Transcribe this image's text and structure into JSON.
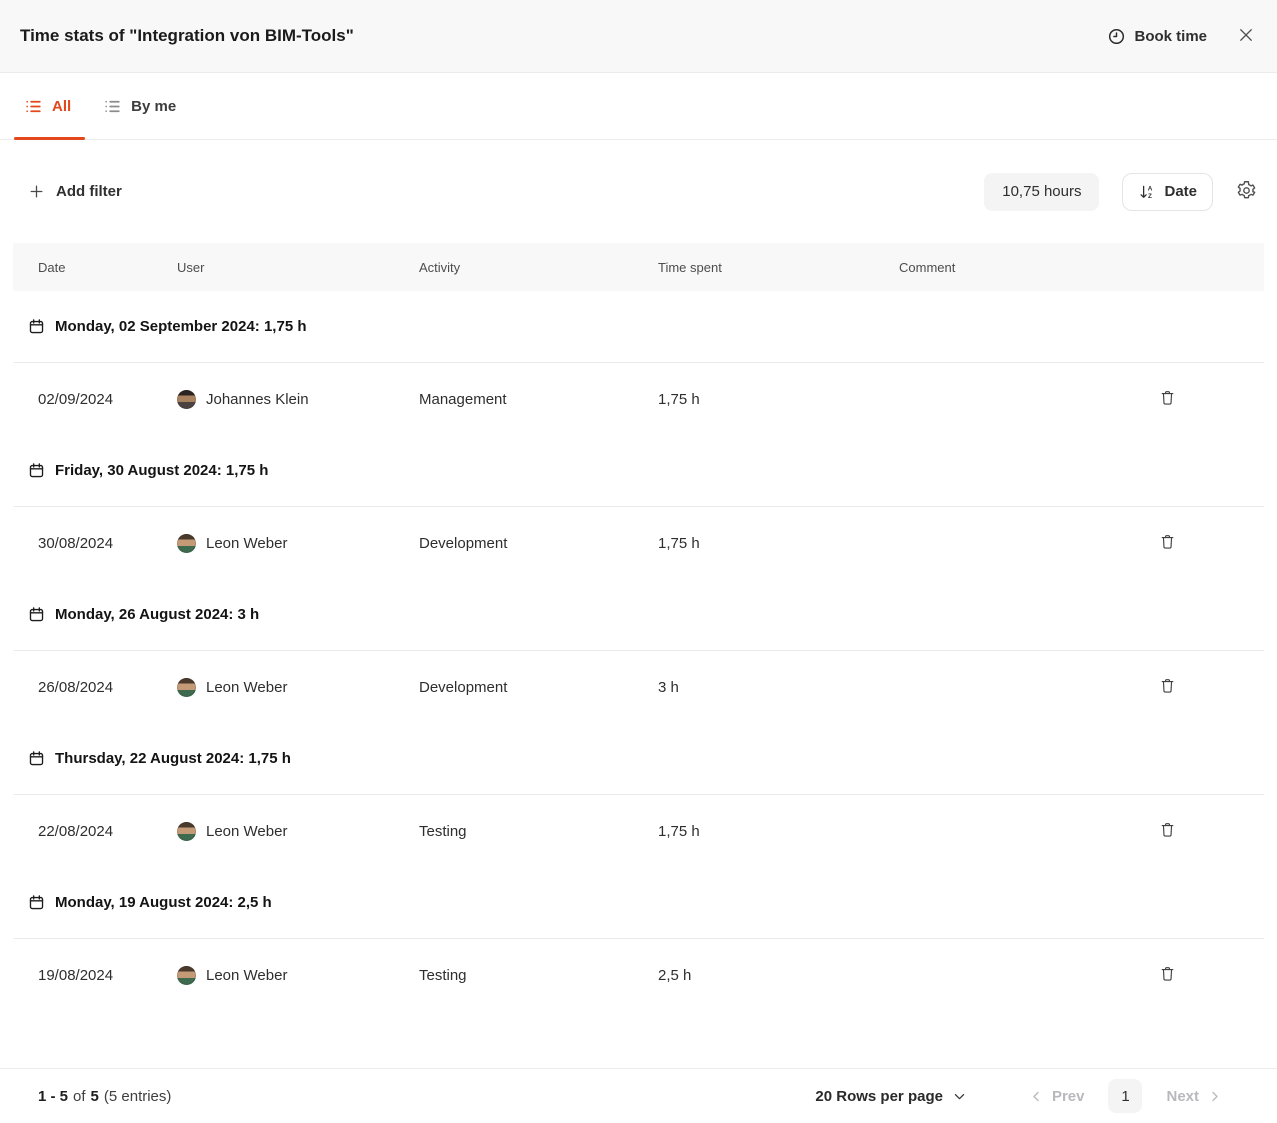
{
  "header": {
    "title": "Time stats of \"Integration von BIM-Tools\"",
    "book_time_label": "Book time"
  },
  "tabs": [
    {
      "label": "All",
      "active": true
    },
    {
      "label": "By me",
      "active": false
    }
  ],
  "toolbar": {
    "add_filter_label": "Add filter",
    "total_hours": "10,75 hours",
    "sort_label": "Date"
  },
  "table": {
    "columns": [
      "Date",
      "User",
      "Activity",
      "Time spent",
      "Comment"
    ],
    "groups": [
      {
        "header": "Monday, 02 September 2024: 1,75 h",
        "rows": [
          {
            "date": "02/09/2024",
            "user": "Johannes Klein",
            "activity": "Management",
            "time_spent": "1,75 h",
            "comment": "",
            "avatar_colors": [
              "#2b2522",
              "#a8825f",
              "#4a4342"
            ]
          }
        ]
      },
      {
        "header": "Friday, 30 August 2024: 1,75 h",
        "rows": [
          {
            "date": "30/08/2024",
            "user": "Leon Weber",
            "activity": "Development",
            "time_spent": "1,75 h",
            "comment": "",
            "avatar_colors": [
              "#4a3a2c",
              "#c49a77",
              "#3e6b4f"
            ]
          }
        ]
      },
      {
        "header": "Monday, 26 August 2024: 3 h",
        "rows": [
          {
            "date": "26/08/2024",
            "user": "Leon Weber",
            "activity": "Development",
            "time_spent": "3 h",
            "comment": "",
            "avatar_colors": [
              "#4a3a2c",
              "#c49a77",
              "#3e6b4f"
            ]
          }
        ]
      },
      {
        "header": "Thursday, 22 August 2024: 1,75 h",
        "rows": [
          {
            "date": "22/08/2024",
            "user": "Leon Weber",
            "activity": "Testing",
            "time_spent": "1,75 h",
            "comment": "",
            "avatar_colors": [
              "#4a3a2c",
              "#c49a77",
              "#3e6b4f"
            ]
          }
        ]
      },
      {
        "header": "Monday, 19 August 2024: 2,5 h",
        "rows": [
          {
            "date": "19/08/2024",
            "user": "Leon Weber",
            "activity": "Testing",
            "time_spent": "2,5 h",
            "comment": "",
            "avatar_colors": [
              "#4a3a2c",
              "#c49a77",
              "#3e6b4f"
            ]
          }
        ]
      }
    ]
  },
  "pagination": {
    "summary_range": "1 - 5",
    "summary_of": "of",
    "summary_total": "5",
    "summary_entries": "(5 entries)",
    "rows_per_page": "20 Rows per page",
    "prev_label": "Prev",
    "page": "1",
    "next_label": "Next"
  },
  "colors": {
    "accent": "#e2481c",
    "header_bg": "#f8f8f8",
    "table_header_bg": "#f8f8f8",
    "pill_bg": "#f4f4f5",
    "divider": "#ececec",
    "disabled_text": "#b9b9bd"
  },
  "icons": {
    "book_time": "clock-icon",
    "close": "close-icon",
    "tab_all": "list-icon",
    "tab_by_me": "list-icon",
    "add_filter": "plus-icon",
    "sort": "sort-az-icon",
    "settings": "gear-icon",
    "group": "calendar-icon",
    "delete": "trash-icon",
    "rows_per_page": "chevron-down-icon",
    "prev": "chevron-left-icon",
    "next": "chevron-right-icon"
  }
}
